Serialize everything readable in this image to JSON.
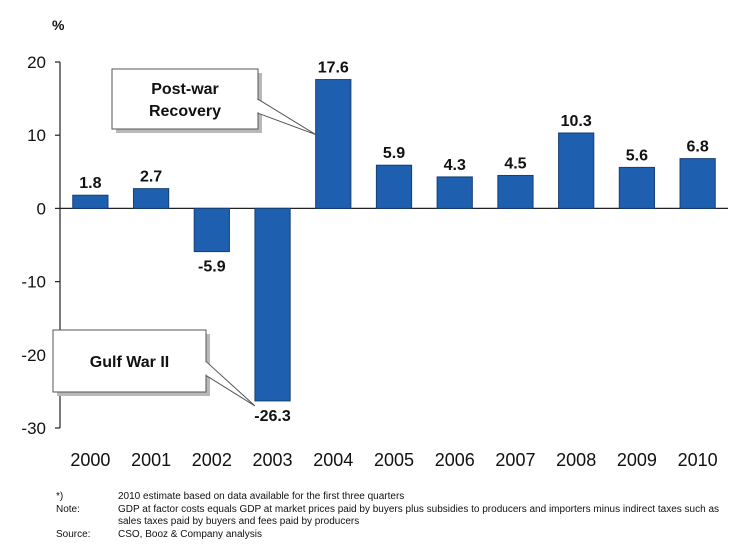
{
  "chart_data": {
    "type": "bar",
    "ylabel": "%",
    "categories": [
      "2000",
      "2001",
      "2002",
      "2003",
      "2004",
      "2005",
      "2006",
      "2007",
      "2008",
      "2009",
      "2010"
    ],
    "values": [
      1.8,
      2.7,
      -5.9,
      -26.3,
      17.6,
      5.9,
      4.3,
      4.5,
      10.3,
      5.6,
      6.8
    ],
    "value_labels": [
      "1.8",
      "2.7",
      "-5.9",
      "-26.3",
      "17.6",
      "5.9",
      "4.3",
      "4.5",
      "10.3",
      "5.6",
      "6.8"
    ],
    "ylim": [
      -30,
      20
    ],
    "yticks": [
      "20",
      "10",
      "0",
      "-10",
      "-20",
      "-30"
    ],
    "grid": false,
    "bar_color": "#1f5fb0",
    "annotations": [
      {
        "lines": [
          "Post-war",
          "Recovery"
        ],
        "points_to": "2004"
      },
      {
        "lines": [
          "Gulf War II"
        ],
        "points_to": "2003"
      }
    ]
  },
  "notes": [
    {
      "key": "*)",
      "text": "2010 estimate based on data available for the first three quarters"
    },
    {
      "key": "Note:",
      "text": "GDP at factor costs equals GDP at market prices paid by buyers plus subsidies to producers and importers minus indirect taxes such as sales taxes paid by buyers and fees paid by producers"
    },
    {
      "key": "Source:",
      "text": "CSO, Booz & Company analysis"
    }
  ]
}
